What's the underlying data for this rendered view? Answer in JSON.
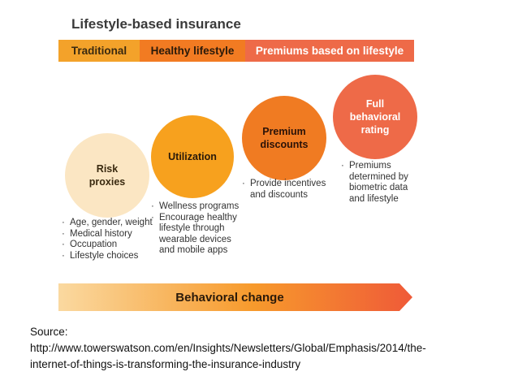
{
  "title": "Lifestyle-based insurance",
  "banners": {
    "traditional": "Traditional",
    "healthy": "Healthy lifestyle",
    "premiums": "Premiums based on lifestyle"
  },
  "stages": [
    {
      "label_lines": [
        "Risk",
        "proxies"
      ],
      "bullets": [
        "Age, gender, weight",
        "Medical history",
        "Occupation",
        "Lifestyle choices"
      ],
      "color": "#fbe6c3"
    },
    {
      "label_lines": [
        "Utilization"
      ],
      "bullets": [
        "Wellness programs",
        "Encourage healthy lifestyle through wearable devices and mobile apps"
      ],
      "color": "#f7a11e"
    },
    {
      "label_lines": [
        "Premium",
        "discounts"
      ],
      "bullets": [
        "Provide incentives and discounts"
      ],
      "color": "#f07b22"
    },
    {
      "label_lines": [
        "Full",
        "behavioral",
        "rating"
      ],
      "bullets": [
        "Premiums determined by biometric data and lifestyle"
      ],
      "color": "#ee6a48"
    }
  ],
  "arrow_label": "Behavioral change",
  "arrow_colors": {
    "start": "#fad9a0",
    "mid": "#f79a2c",
    "end": "#ef5a38"
  },
  "source": {
    "line1": "Source:",
    "line2": "http://www.towerswatson.com/en/Insights/Newsletters/Global/Emphasis/2014/the-",
    "line3": "internet-of-things-is-transforming-the-insurance-industry"
  }
}
